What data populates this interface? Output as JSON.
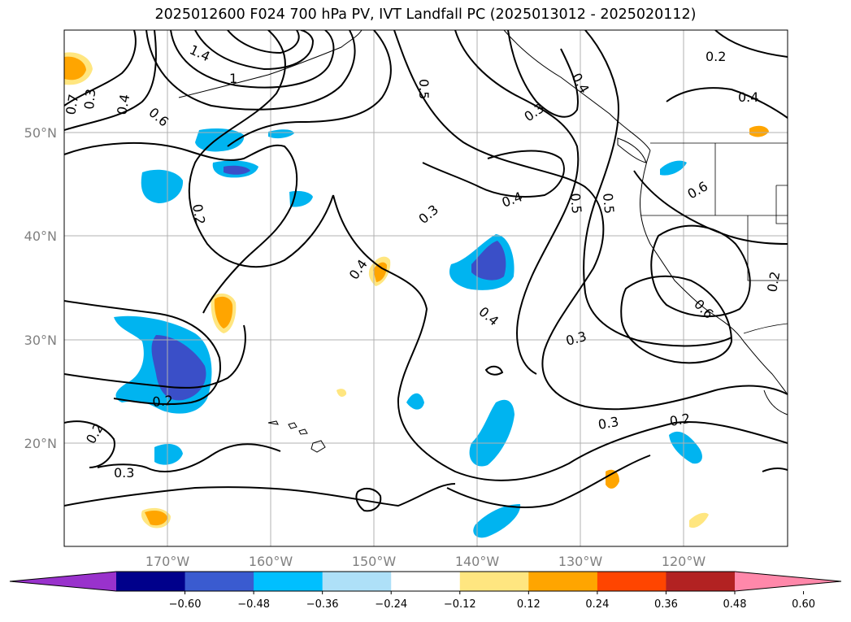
{
  "title": "2025012600 F024 700 hPa PV, IVT Landfall PC (2025013012 - 2025020112)",
  "map": {
    "lat_labels": [
      "20°N",
      "30°N",
      "40°N",
      "50°N"
    ],
    "lon_labels": [
      "170°W",
      "160°W",
      "150°W",
      "140°W",
      "130°W",
      "120°W"
    ],
    "contour_labels": [
      "1.4",
      "1",
      "0.7",
      "0.3",
      "0.4",
      "0.6",
      "0.5",
      "0.2",
      "0.3",
      "0.4",
      "0.3",
      "0.4",
      "0.4",
      "0.5",
      "0.5",
      "0.4",
      "0.6",
      "0.2",
      "0.4",
      "0.3",
      "0.6",
      "0.2",
      "0.3",
      "0.2",
      "0.2",
      "0.3",
      "0.2"
    ],
    "shading_colors": {
      "strong_negative": "#3a4fc8",
      "negative": "#00b4f0",
      "weak_negative": "#a8dcf8",
      "weak_positive": "#ffe680",
      "positive": "#ffa500"
    }
  },
  "colorbar": {
    "ticks": [
      "−0.60",
      "−0.48",
      "−0.36",
      "−0.24",
      "−0.12",
      "0.12",
      "0.24",
      "0.36",
      "0.48",
      "0.60"
    ],
    "colors": [
      "#9932cc",
      "#00008b",
      "#3a5bd0",
      "#00bfff",
      "#aee0f8",
      "#ffffff",
      "#ffe680",
      "#ffa500",
      "#ff4500",
      "#b22222",
      "#ff88aa"
    ]
  }
}
